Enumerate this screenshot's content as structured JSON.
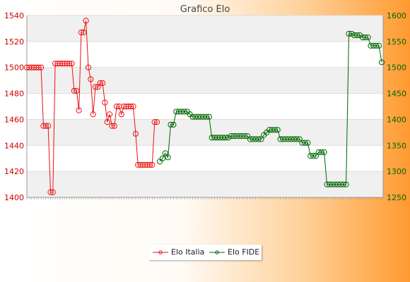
{
  "chart_data": {
    "type": "line",
    "title": "Grafico Elo",
    "legend_position": "bottom",
    "grid": true,
    "y_left": {
      "ylim": [
        1400,
        1540
      ],
      "ticks": [
        1400,
        1420,
        1440,
        1460,
        1480,
        1500,
        1520,
        1540
      ],
      "color": "#cc0000"
    },
    "y_right": {
      "ylim": [
        1250,
        1600
      ],
      "ticks": [
        1250,
        1300,
        1350,
        1400,
        1450,
        1500,
        1550,
        1600
      ],
      "color": "#006600"
    },
    "series": [
      {
        "name": "Elo Italia",
        "color": "#ee1111",
        "axis": "left",
        "values": [
          1500,
          1500,
          1500,
          1500,
          1500,
          1500,
          1500,
          1455,
          1455,
          1455,
          1404,
          1404,
          1503,
          1503,
          1503,
          1503,
          1503,
          1503,
          1503,
          1503,
          1482,
          1482,
          1467,
          1527,
          1527,
          1536,
          1500,
          1491,
          1464,
          1485,
          1485,
          1488,
          1488,
          1473,
          1458,
          1464,
          1455,
          1455,
          1470,
          1470,
          1464,
          1470,
          1470,
          1470,
          1470,
          1470,
          1449,
          1425,
          1425,
          1425,
          1425,
          1425,
          1425,
          1425,
          1458,
          1458
        ]
      },
      {
        "name": "Elo FIDE",
        "color": "#006600",
        "axis": "right",
        "values": [
          1319,
          1325,
          1335,
          1327,
          1390,
          1390,
          1415,
          1415,
          1415,
          1415,
          1415,
          1410,
          1405,
          1405,
          1405,
          1405,
          1405,
          1405,
          1405,
          1365,
          1365,
          1365,
          1365,
          1365,
          1365,
          1365,
          1368,
          1368,
          1368,
          1368,
          1368,
          1368,
          1368,
          1362,
          1362,
          1362,
          1362,
          1362,
          1370,
          1375,
          1380,
          1380,
          1380,
          1380,
          1362,
          1362,
          1362,
          1362,
          1362,
          1362,
          1362,
          1362,
          1355,
          1355,
          1355,
          1330,
          1330,
          1330,
          1337,
          1337,
          1337,
          1275,
          1275,
          1275,
          1275,
          1275,
          1275,
          1275,
          1275,
          1565,
          1565,
          1562,
          1562,
          1562,
          1558,
          1558,
          1558,
          1542,
          1542,
          1542,
          1542,
          1510
        ]
      }
    ]
  }
}
